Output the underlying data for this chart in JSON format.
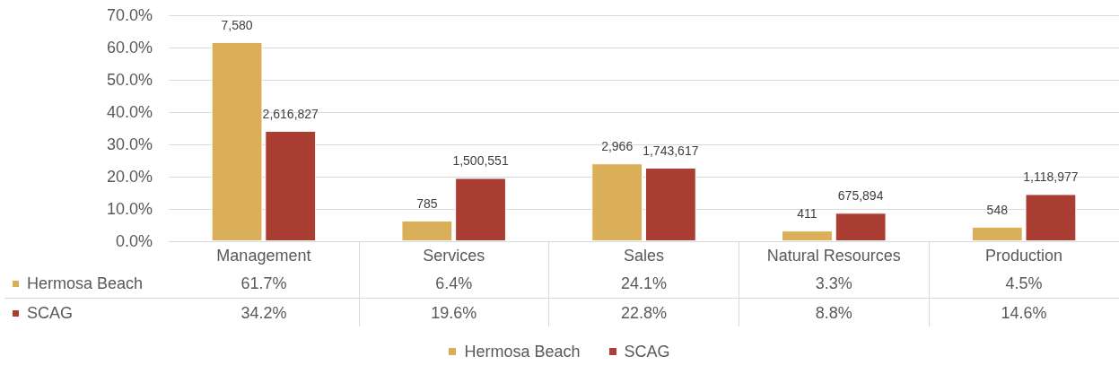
{
  "chart_data": {
    "type": "bar",
    "categories": [
      "Management",
      "Services",
      "Sales",
      "Natural Resources",
      "Production"
    ],
    "series": [
      {
        "name": "Hermosa Beach",
        "color": "#dbae5a",
        "values": [
          61.7,
          6.4,
          24.1,
          3.3,
          4.5
        ],
        "value_labels": [
          "61.7%",
          "6.4%",
          "24.1%",
          "3.3%",
          "4.5%"
        ]
      },
      {
        "name": "SCAG",
        "color": "#aa3e32",
        "values": [
          34.2,
          19.6,
          22.8,
          8.8,
          14.6
        ],
        "value_labels": [
          "34.2%",
          "19.6%",
          "22.8%",
          "8.8%",
          "14.6%"
        ]
      }
    ],
    "annotations": [
      {
        "text": "7,580",
        "x": "Management",
        "y": 61.7
      },
      {
        "text": "785",
        "x": "Services",
        "y": 6.4
      },
      {
        "text": "2,966",
        "x": "Sales",
        "y": 24.1
      },
      {
        "text": "411",
        "x": "Natural Resources",
        "y": 3.3
      },
      {
        "text": "548",
        "x": "Production",
        "y": 4.5
      },
      {
        "text": "2,616,827",
        "x": "Management",
        "y": 34.2
      },
      {
        "text": "1,500,551",
        "x": "Services",
        "y": 19.6
      },
      {
        "text": "1,743,617",
        "x": "Sales",
        "y": 22.8
      },
      {
        "text": "675,894",
        "x": "Natural Resources",
        "y": 8.8
      },
      {
        "text": "1,118,977",
        "x": "Production",
        "y": 14.6
      }
    ],
    "ylim": [
      0,
      70
    ],
    "yticks": [
      {
        "value": 0,
        "label": "0.0%"
      },
      {
        "value": 10,
        "label": "10.0%"
      },
      {
        "value": 20,
        "label": "20.0%"
      },
      {
        "value": 30,
        "label": "30.0%"
      },
      {
        "value": 40,
        "label": "40.0%"
      },
      {
        "value": 50,
        "label": "50.0%"
      },
      {
        "value": 60,
        "label": "60.0%"
      },
      {
        "value": 70,
        "label": "70.0%"
      }
    ],
    "grid": "y",
    "legend": "bottom"
  }
}
